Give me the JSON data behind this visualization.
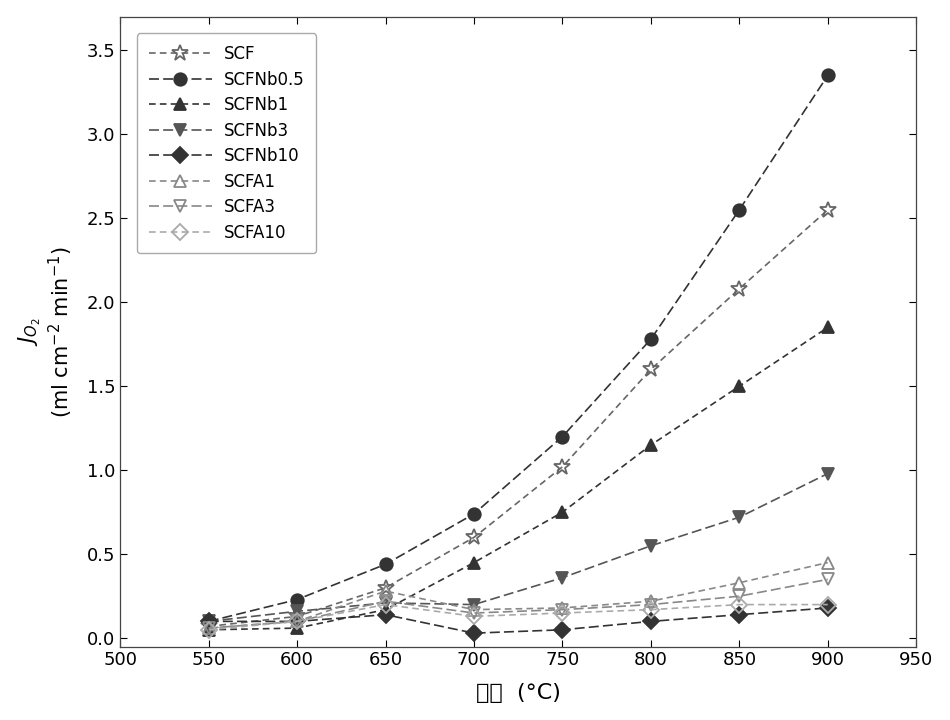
{
  "x": [
    550,
    600,
    650,
    700,
    750,
    800,
    850,
    900
  ],
  "series": [
    {
      "name": "SCF",
      "y": [
        0.07,
        0.13,
        0.3,
        0.6,
        1.02,
        1.6,
        2.08,
        2.55
      ],
      "marker": "*",
      "color": "#666666",
      "linestyle": "dotted",
      "filled": false,
      "ms": 12
    },
    {
      "name": "SCFNb0.5",
      "y": [
        0.1,
        0.23,
        0.44,
        0.74,
        1.2,
        1.78,
        2.55,
        3.35
      ],
      "marker": "o",
      "color": "#333333",
      "linestyle": "dashed",
      "filled": true,
      "ms": 9
    },
    {
      "name": "SCFNb1",
      "y": [
        0.05,
        0.06,
        0.17,
        0.45,
        0.75,
        1.15,
        1.5,
        1.85
      ],
      "marker": "^",
      "color": "#333333",
      "linestyle": "dotted",
      "filled": true,
      "ms": 9
    },
    {
      "name": "SCFNb3",
      "y": [
        0.1,
        0.16,
        0.21,
        0.2,
        0.36,
        0.55,
        0.72,
        0.98
      ],
      "marker": "v",
      "color": "#555555",
      "linestyle": "dashed",
      "filled": true,
      "ms": 9
    },
    {
      "name": "SCFNb10",
      "y": [
        0.1,
        0.1,
        0.14,
        0.03,
        0.05,
        0.1,
        0.14,
        0.18
      ],
      "marker": "D",
      "color": "#333333",
      "linestyle": "dashed",
      "filled": true,
      "ms": 8
    },
    {
      "name": "SCFA1",
      "y": [
        0.06,
        0.1,
        0.28,
        0.17,
        0.18,
        0.22,
        0.33,
        0.45
      ],
      "marker": "^",
      "color": "#888888",
      "linestyle": "dotted",
      "filled": false,
      "ms": 9
    },
    {
      "name": "SCFA3",
      "y": [
        0.06,
        0.1,
        0.22,
        0.15,
        0.17,
        0.2,
        0.25,
        0.35
      ],
      "marker": "v",
      "color": "#888888",
      "linestyle": "dashed",
      "filled": false,
      "ms": 9
    },
    {
      "name": "SCFA10",
      "y": [
        0.05,
        0.1,
        0.2,
        0.13,
        0.15,
        0.17,
        0.2,
        0.2
      ],
      "marker": "D",
      "color": "#aaaaaa",
      "linestyle": "dotted",
      "filled": false,
      "ms": 8
    }
  ],
  "xlabel": "温度  (°C)",
  "ylabel_math": "$J_{O_2}$",
  "ylabel_unit": "(ml cm$^{-2}$ min$^{-1}$)",
  "xlim": [
    500,
    950
  ],
  "ylim": [
    -0.05,
    3.7
  ],
  "xticks": [
    500,
    550,
    600,
    650,
    700,
    750,
    800,
    850,
    900,
    950
  ],
  "yticks": [
    0.0,
    0.5,
    1.0,
    1.5,
    2.0,
    2.5,
    3.0,
    3.5
  ],
  "background_color": "#ffffff"
}
